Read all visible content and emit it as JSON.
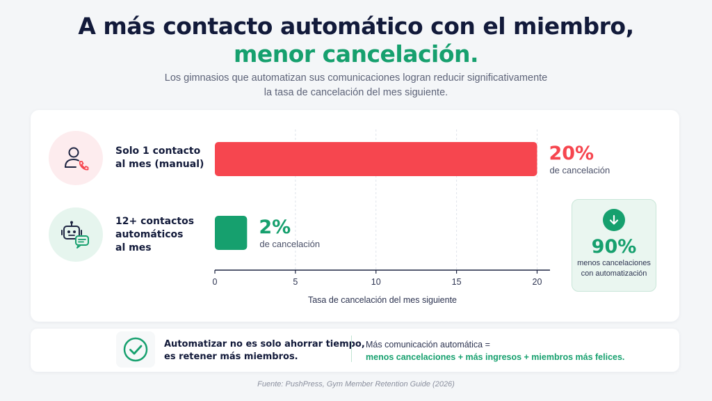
{
  "header": {
    "title_line1": "A más contacto automático con el miembro,",
    "title_line2": "menor cancelación.",
    "subtitle_line1": "Los gimnasios que automatizan sus comunicaciones logran reducir significativamente",
    "subtitle_line2": "la tasa de cancelación del mes siguiente."
  },
  "rows": [
    {
      "icon": "user-phone-icon",
      "label_lines": [
        "Solo 1 contacto",
        "al mes (manual)"
      ],
      "value_text": "20%",
      "value_sub": "de cancelación",
      "color": "#f6464f"
    },
    {
      "icon": "robot-chat-icon",
      "label_lines": [
        "12+ contactos",
        "automáticos",
        "al mes"
      ],
      "value_text": "2%",
      "value_sub": "de cancelación",
      "color": "#16a06e"
    }
  ],
  "chart_data": {
    "type": "bar",
    "orientation": "horizontal",
    "categories": [
      "Solo 1 contacto al mes (manual)",
      "12+ contactos automáticos al mes"
    ],
    "values": [
      20,
      2
    ],
    "colors": [
      "#f6464f",
      "#16a06e"
    ],
    "xlabel": "Tasa de cancelación del mes siguiente",
    "xlim": [
      0,
      20.8
    ],
    "xticks": [
      0,
      5,
      10,
      15,
      20
    ],
    "grid": "vertical dashed"
  },
  "badge": {
    "icon": "arrow-down-icon",
    "percent": "90%",
    "text_lines": [
      "menos cancelaciones",
      "con automatización"
    ],
    "accent": "#16a06e"
  },
  "footer_message": {
    "icon": "check-circle-icon",
    "left_lines": [
      "Automatizar no es solo ahorrar tiempo,",
      "es retener más miembros."
    ],
    "right_line1": "Más comunicación automática =",
    "right_line2": "menos cancelaciones + más ingresos + miembros más felices."
  },
  "source": "Fuente: PushPress, Gym Member Retention Guide (2026)"
}
